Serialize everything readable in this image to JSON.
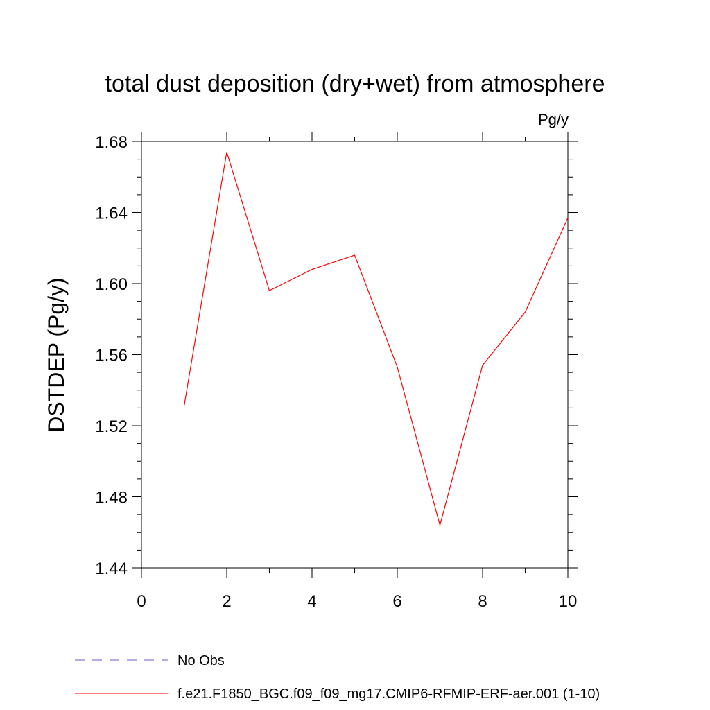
{
  "chart_data": {
    "type": "line",
    "title": "total dust deposition (dry+wet) from atmosphere",
    "units": "Pg/y",
    "ylabel": "DSTDEP  (Pg/y)",
    "xlabel": "",
    "xlim": [
      0,
      10
    ],
    "ylim": [
      1.44,
      1.68
    ],
    "x_ticks": [
      "0",
      "2",
      "4",
      "6",
      "8",
      "10"
    ],
    "y_ticks": [
      "1.44",
      "1.48",
      "1.52",
      "1.56",
      "1.60",
      "1.64",
      "1.68"
    ],
    "grid": false,
    "legend_position": "bottom",
    "series": [
      {
        "name": "f.e21.F1850_BGC.f09_f09_mg17.CMIP6-RFMIP-ERF-aer.001 (1-10)",
        "color": "#ff0000",
        "style": "solid",
        "x": [
          1,
          2,
          3,
          4,
          5,
          6,
          7,
          8,
          9,
          10
        ],
        "y": [
          1.531,
          1.674,
          1.596,
          1.608,
          1.616,
          1.553,
          1.464,
          1.554,
          1.584,
          1.637
        ]
      }
    ],
    "legend": [
      {
        "label": "No Obs",
        "color": "#6a5acd",
        "style": "dashed"
      },
      {
        "label": "f.e21.F1850_BGC.f09_f09_mg17.CMIP6-RFMIP-ERF-aer.001 (1-10)",
        "color": "#ff0000",
        "style": "solid"
      }
    ]
  }
}
